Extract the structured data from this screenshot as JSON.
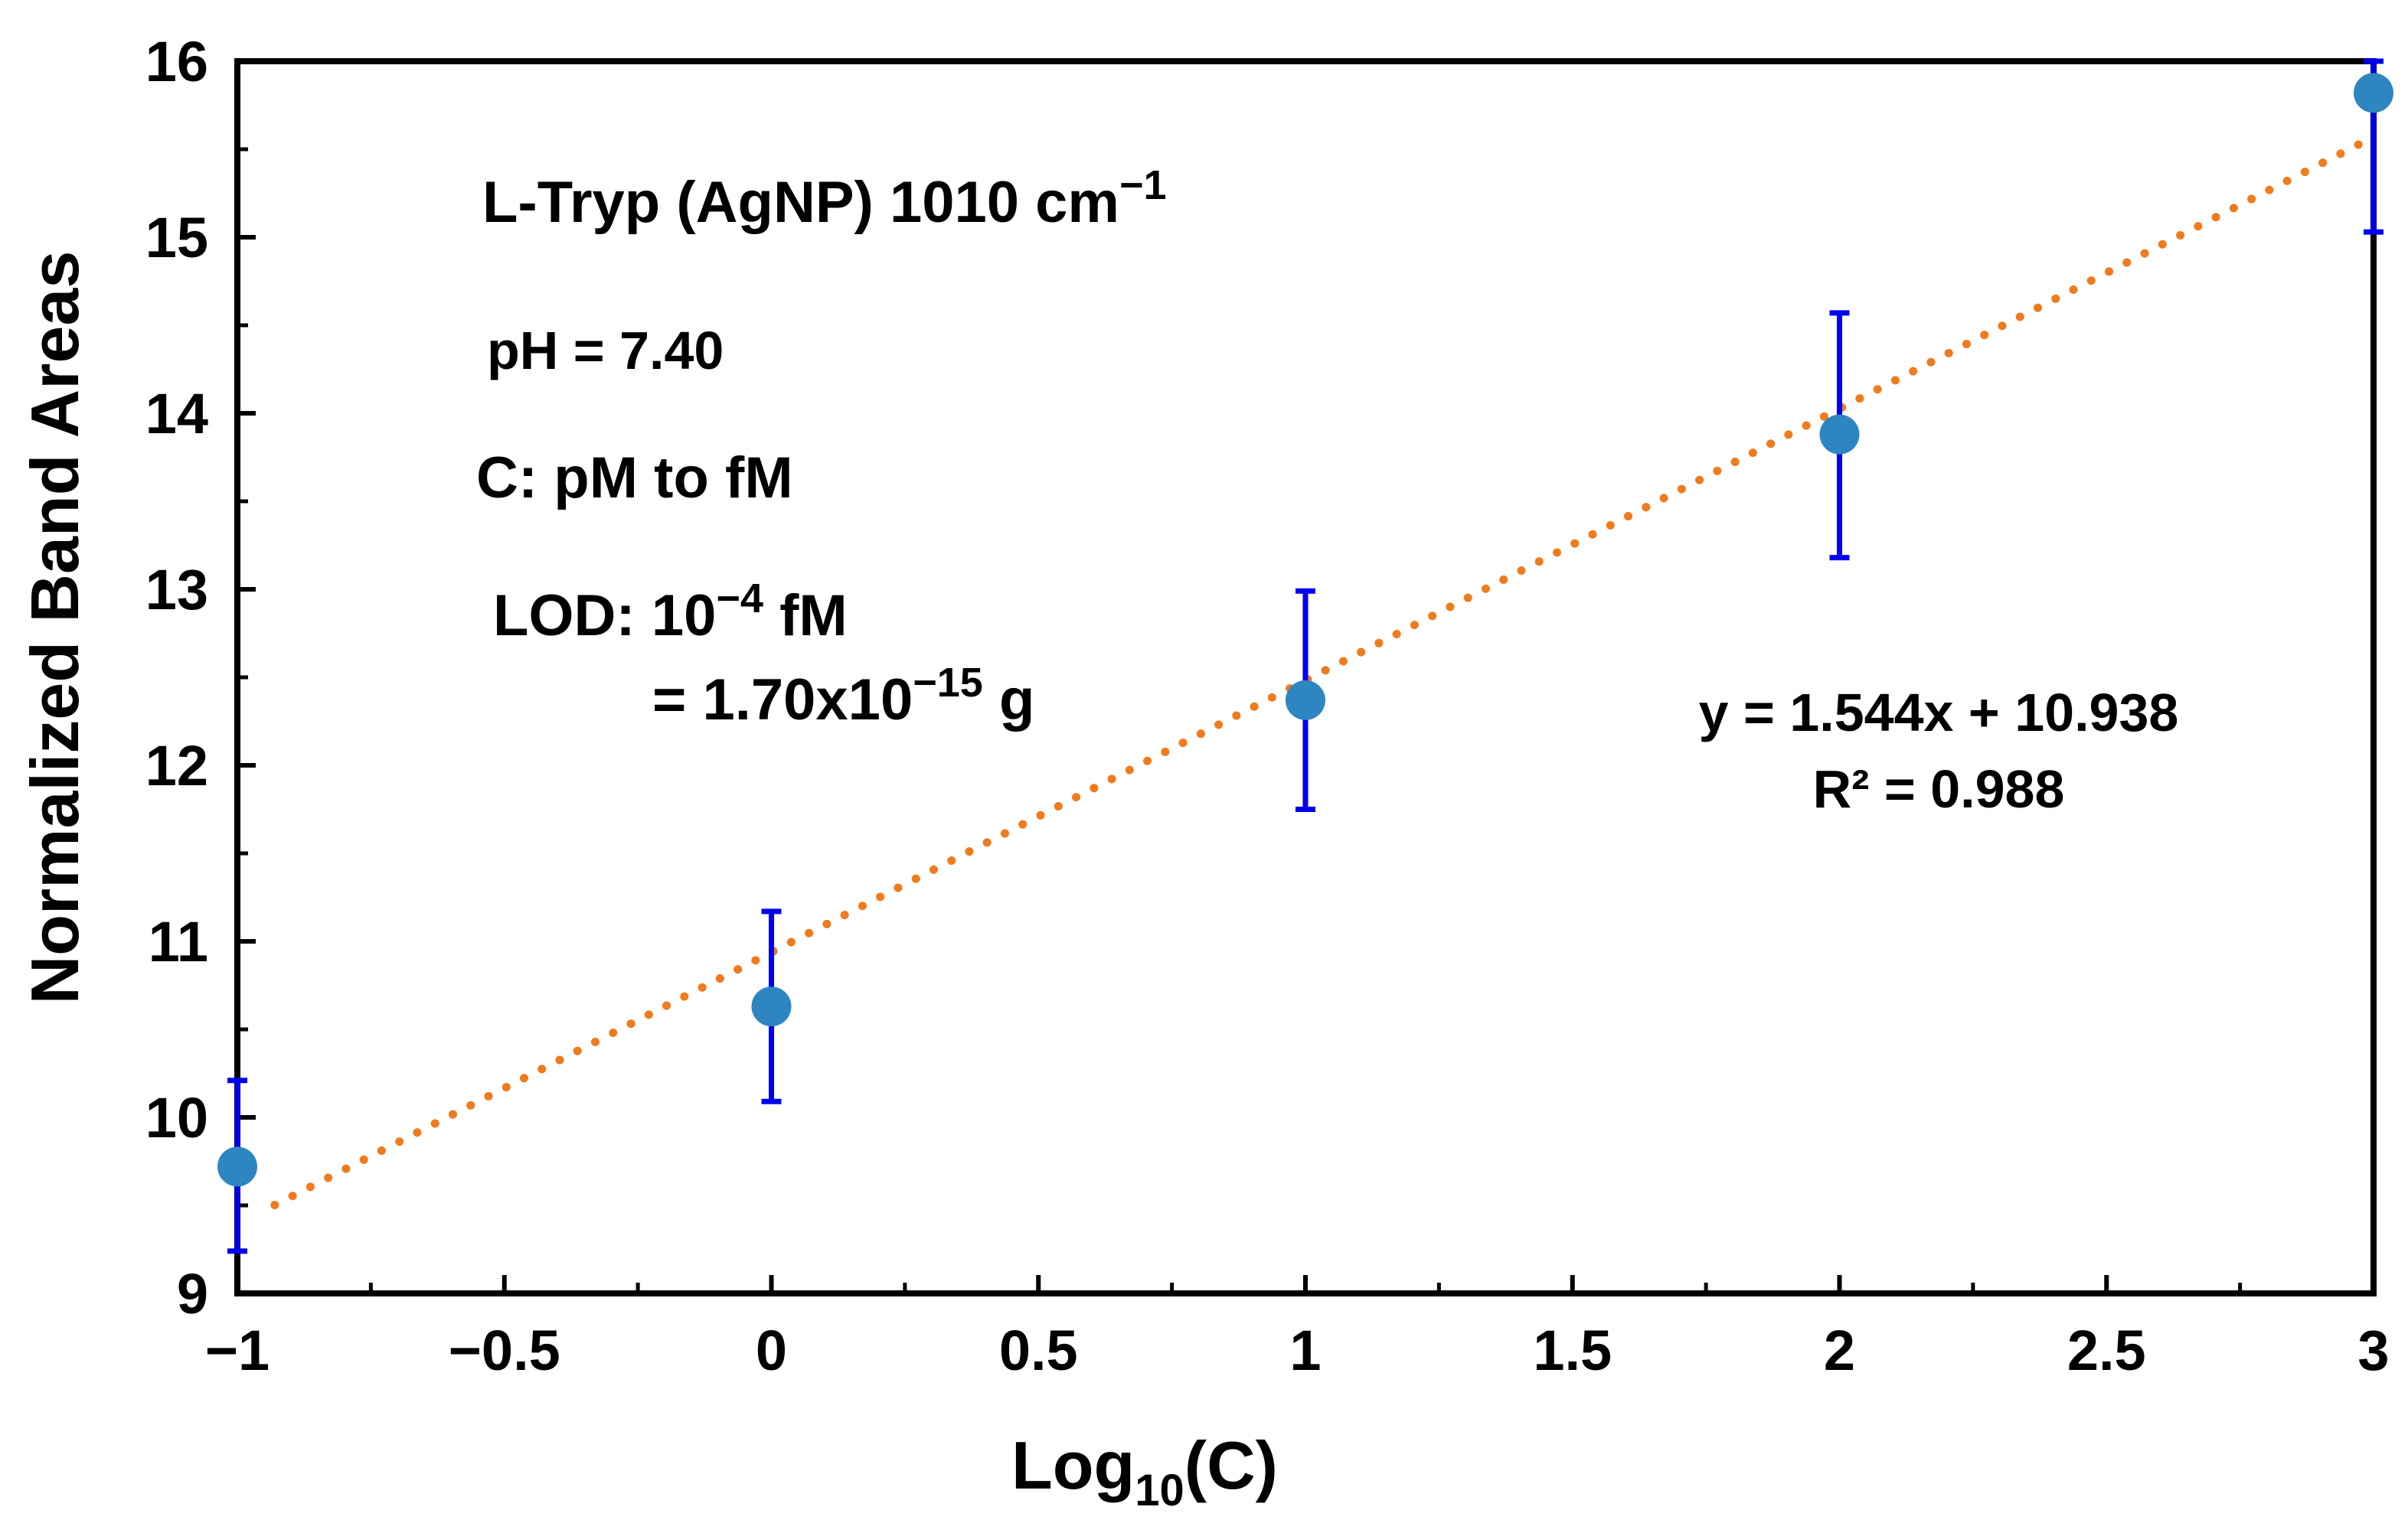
{
  "chart_data": {
    "type": "scatter",
    "title": "",
    "xlabel": "Log",
    "xlabel_sub": "10",
    "xlabel_tail": "(C)",
    "ylabel": "Normalized Band Areas",
    "xlim": [
      -1,
      3
    ],
    "ylim": [
      9,
      16
    ],
    "x_ticks": [
      -1,
      -0.5,
      0,
      0.5,
      1,
      1.5,
      2,
      2.5,
      3
    ],
    "x_tick_labels": [
      "−1",
      "−0.5",
      "0",
      "0.5",
      "1",
      "1.5",
      "2",
      "2.5",
      "3"
    ],
    "y_ticks": [
      9,
      10,
      11,
      12,
      13,
      14,
      15,
      16
    ],
    "y_tick_labels": [
      "9",
      "10",
      "11",
      "12",
      "13",
      "14",
      "15",
      "16"
    ],
    "grid": false,
    "series": [
      {
        "name": "Normalized Band Areas",
        "x": [
          -1,
          0,
          1,
          2,
          3
        ],
        "y": [
          9.72,
          10.63,
          12.37,
          13.88,
          15.82
        ],
        "error_low": [
          9.24,
          10.09,
          11.75,
          13.18,
          15.03
        ],
        "error_high": [
          10.21,
          11.17,
          12.99,
          14.57,
          16.0
        ],
        "marker_color": "#2E86C1",
        "error_color": "#0000EE"
      }
    ],
    "trendline": {
      "slope": 1.544,
      "intercept": 10.938,
      "x_range": [
        -1,
        3
      ],
      "color": "#F07B1D",
      "style": "dotted"
    },
    "annotations": {
      "compound": "L-Tryp (AgNP) 1010 cm",
      "compound_sup": "−1",
      "ph": "pH = 7.40",
      "conc_range": "C: pM to fM",
      "lod_line1": "LOD: 10",
      "lod_line1_sup": "−4",
      "lod_line1_tail": " fM",
      "lod_line2": "= 1.70x10",
      "lod_line2_sup": "−15",
      "lod_line2_tail": " g",
      "equation": "y = 1.544x + 10.938",
      "r_squared": "R² = 0.988"
    }
  }
}
